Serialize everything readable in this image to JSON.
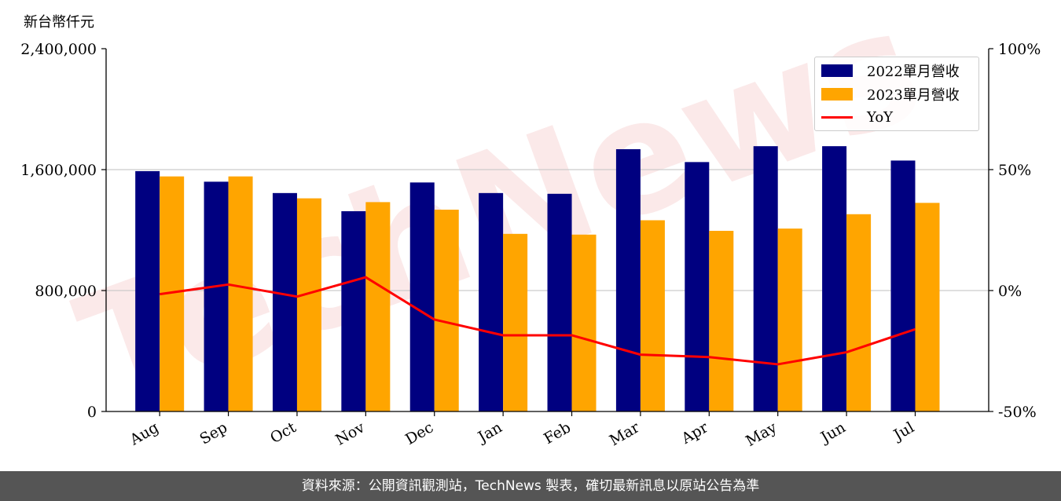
{
  "unit_label": "新台幣仟元",
  "footer_text": "資料來源：公開資訊觀測站，TechNews 製表，確切最新訊息以原站公告為準",
  "watermark": "TechNews",
  "colors": {
    "series_2022": "#000080",
    "series_2023": "#FFA500",
    "yoy": "#FF0000",
    "footer_bg": "#555555",
    "grid": "#cccccc"
  },
  "chart_data": {
    "type": "bar",
    "categories": [
      "Aug",
      "Sep",
      "Oct",
      "Nov",
      "Dec",
      "Jan",
      "Feb",
      "Mar",
      "Apr",
      "May",
      "Jun",
      "Jul"
    ],
    "series": [
      {
        "name": "2022單月營收",
        "type": "bar",
        "axis": "left",
        "values": [
          1590000,
          1520000,
          1445000,
          1325000,
          1515000,
          1445000,
          1440000,
          1735000,
          1650000,
          1755000,
          1755000,
          1660000
        ]
      },
      {
        "name": "2023單月營收",
        "type": "bar",
        "axis": "left",
        "values": [
          1555000,
          1555000,
          1410000,
          1385000,
          1335000,
          1175000,
          1170000,
          1265000,
          1195000,
          1210000,
          1305000,
          1380000
        ]
      },
      {
        "name": "YoY",
        "type": "line",
        "axis": "right",
        "values": [
          -1.5,
          2.5,
          -2.5,
          5.5,
          -12,
          -18.5,
          -18.5,
          -26.5,
          -27.5,
          -30.5,
          -25.5,
          -16
        ]
      }
    ],
    "y_left": {
      "lim": [
        0,
        2400000
      ],
      "ticks": [
        0,
        800000,
        1600000,
        2400000
      ],
      "tick_labels": [
        "0",
        "800,000",
        "1,600,000",
        "2,400,000"
      ]
    },
    "y_right": {
      "lim": [
        -50,
        100
      ],
      "ticks": [
        -50,
        0,
        50,
        100
      ],
      "tick_labels": [
        "-50%",
        "0%",
        "50%",
        "100%"
      ]
    },
    "grid": true,
    "legend_position": "top-right"
  }
}
